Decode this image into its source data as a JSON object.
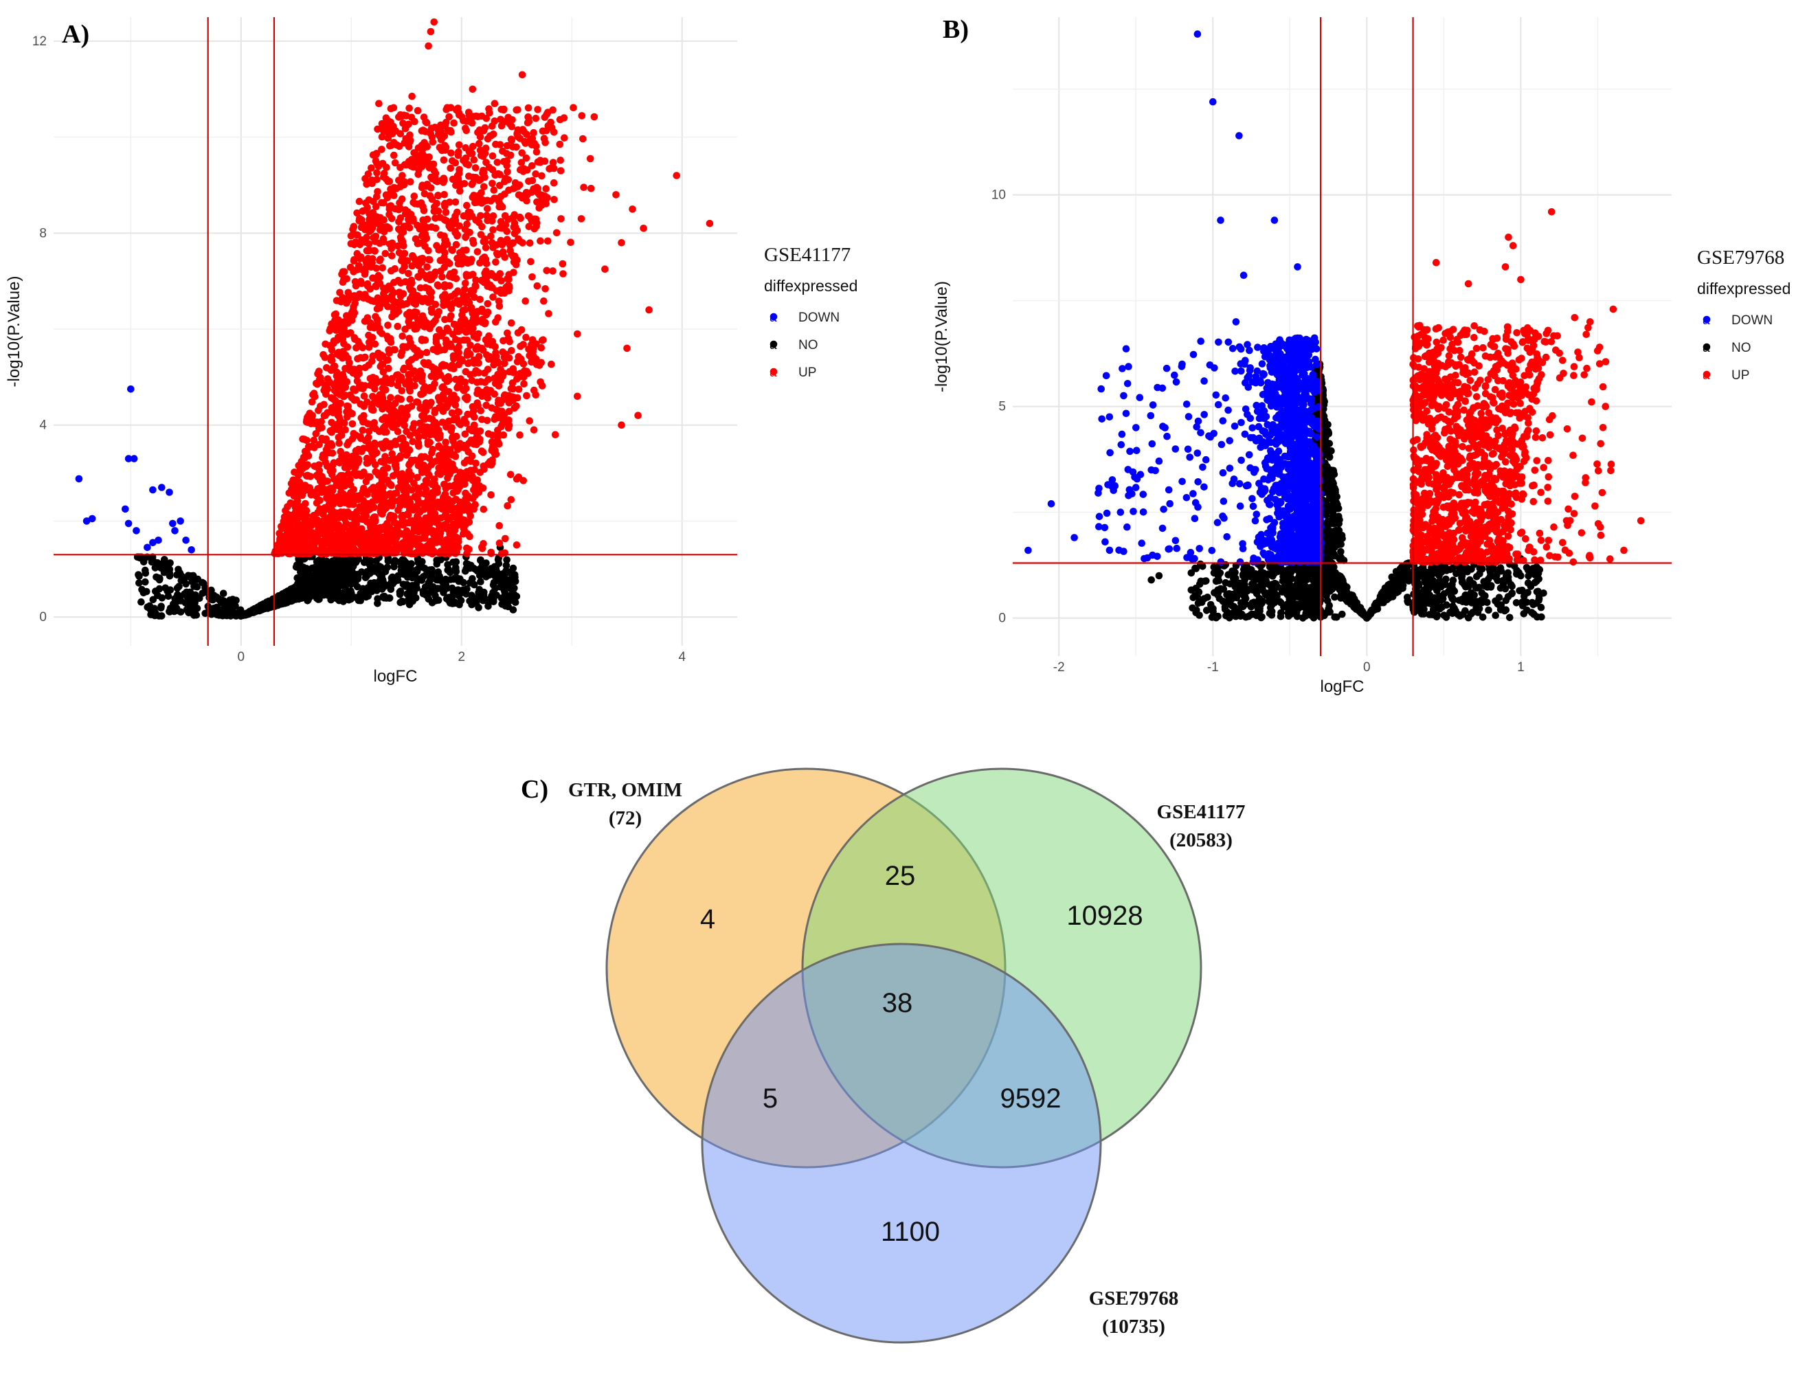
{
  "chart_data": [
    {
      "panel_label": "A)",
      "type": "scatter",
      "xlabel": "logFC",
      "ylabel": "-log10(P.Value)",
      "xlim": [
        -1.7,
        4.5
      ],
      "ylim": [
        -0.6,
        12.5
      ],
      "x_ticks": [
        "0",
        "2",
        "4"
      ],
      "y_ticks": [
        "0",
        "4",
        "8",
        "12"
      ],
      "thresholds": {
        "logFC": [
          -0.3,
          0.3
        ],
        "neg_log10_p": 1.3
      },
      "threshold_color": "#d40000",
      "legend": {
        "title": "GSE41177",
        "subtitle": "diffexpressed",
        "position": "right",
        "items": [
          {
            "key": "a",
            "label": "DOWN",
            "color": "#0000ff"
          },
          {
            "key": "a",
            "label": "NO",
            "color": "#000000"
          },
          {
            "key": "a",
            "label": "UP",
            "color": "#ff0000"
          }
        ]
      },
      "series": [
        {
          "name": "DOWN",
          "color": "#0000ff",
          "points": [
            [
              -1.47,
              2.88
            ],
            [
              -1.4,
              2.0
            ],
            [
              -1.35,
              2.05
            ],
            [
              -1.0,
              4.75
            ],
            [
              -1.02,
              3.3
            ],
            [
              -0.97,
              3.3
            ],
            [
              -1.05,
              2.25
            ],
            [
              -1.02,
              1.95
            ],
            [
              -0.95,
              1.8
            ],
            [
              -0.8,
              1.55
            ],
            [
              -0.75,
              1.6
            ],
            [
              -0.8,
              2.65
            ],
            [
              -0.72,
              2.7
            ],
            [
              -0.65,
              2.6
            ],
            [
              -0.6,
              1.8
            ],
            [
              -0.55,
              2.0
            ],
            [
              -0.5,
              1.6
            ],
            [
              -0.45,
              1.4
            ],
            [
              -0.85,
              1.45
            ],
            [
              -0.62,
              1.95
            ]
          ]
        },
        {
          "name": "NO",
          "color": "#000000",
          "gen": {
            "n": 1800,
            "seed": 11
          }
        },
        {
          "name": "UP",
          "color": "#ff0000",
          "gen": {
            "n": 3200,
            "seed": 7
          },
          "extra_points": [
            [
              1.75,
              12.4
            ],
            [
              1.72,
              12.2
            ],
            [
              1.7,
              11.9
            ],
            [
              2.55,
              11.3
            ],
            [
              2.1,
              11.0
            ],
            [
              1.55,
              10.85
            ],
            [
              2.3,
              10.7
            ],
            [
              1.25,
              10.7
            ],
            [
              2.6,
              10.3
            ],
            [
              2.9,
              9.3
            ],
            [
              3.95,
              9.2
            ],
            [
              3.4,
              8.8
            ],
            [
              3.55,
              8.5
            ],
            [
              4.25,
              8.2
            ],
            [
              3.65,
              8.1
            ],
            [
              3.45,
              7.8
            ],
            [
              3.3,
              7.25
            ],
            [
              3.7,
              6.4
            ],
            [
              3.05,
              5.9
            ],
            [
              3.5,
              5.6
            ],
            [
              3.05,
              4.6
            ],
            [
              3.6,
              4.2
            ],
            [
              3.45,
              4.0
            ],
            [
              2.85,
              3.8
            ],
            [
              2.5,
              1.5
            ]
          ]
        }
      ]
    },
    {
      "panel_label": "B)",
      "type": "scatter",
      "xlabel": "logFC",
      "ylabel": "-log10(P.Value)",
      "xlim": [
        -2.3,
        1.98
      ],
      "ylim": [
        -0.9,
        14.2
      ],
      "x_ticks": [
        "-2",
        "-1",
        "0",
        "1"
      ],
      "y_ticks": [
        "0",
        "5",
        "10"
      ],
      "thresholds": {
        "logFC": [
          -0.3,
          0.3
        ],
        "neg_log10_p": 1.3
      },
      "threshold_color": "#d40000",
      "legend": {
        "title": "GSE79768",
        "subtitle": "diffexpressed",
        "position": "right",
        "items": [
          {
            "key": "a",
            "label": "DOWN",
            "color": "#0000ff"
          },
          {
            "key": "a",
            "label": "NO",
            "color": "#000000"
          },
          {
            "key": "a",
            "label": "UP",
            "color": "#ff0000"
          }
        ]
      },
      "series": [
        {
          "name": "DOWN",
          "color": "#0000ff",
          "gen": {
            "n": 1500,
            "seed": 23
          },
          "extra_points": [
            [
              -1.1,
              13.8
            ],
            [
              -1.0,
              12.2
            ],
            [
              -0.83,
              11.4
            ],
            [
              -0.95,
              9.4
            ],
            [
              -0.6,
              9.4
            ],
            [
              -0.45,
              8.3
            ],
            [
              -0.8,
              8.1
            ],
            [
              -0.85,
              7.0
            ],
            [
              -1.2,
              6.0
            ],
            [
              -1.5,
              4.5
            ],
            [
              -1.3,
              5.9
            ],
            [
              -2.05,
              2.7
            ],
            [
              -1.9,
              1.9
            ],
            [
              -2.2,
              1.6
            ],
            [
              -1.7,
              1.8
            ],
            [
              -1.6,
              2.5
            ],
            [
              -1.4,
              3.5
            ],
            [
              -1.15,
              3.8
            ]
          ]
        },
        {
          "name": "NO",
          "color": "#000000",
          "gen": {
            "n": 1600,
            "seed": 31
          }
        },
        {
          "name": "UP",
          "color": "#ff0000",
          "gen": {
            "n": 1300,
            "seed": 41
          },
          "extra_points": [
            [
              1.2,
              9.6
            ],
            [
              0.92,
              9.0
            ],
            [
              0.95,
              8.8
            ],
            [
              0.9,
              8.3
            ],
            [
              0.45,
              8.4
            ],
            [
              0.66,
              7.9
            ],
            [
              1.0,
              8.0
            ],
            [
              1.6,
              7.3
            ],
            [
              1.35,
              7.1
            ],
            [
              1.45,
              7.0
            ],
            [
              1.55,
              5.0
            ],
            [
              1.42,
              3.2
            ],
            [
              1.78,
              2.3
            ],
            [
              1.67,
              1.6
            ],
            [
              1.05,
              1.6
            ]
          ]
        }
      ]
    },
    {
      "panel_label": "C)",
      "type": "venn",
      "sets": [
        {
          "name": "GTR, OMIM",
          "size_label": "(72)",
          "color": "#f5a623"
        },
        {
          "name": "GSE41177",
          "size_label": "(20583)",
          "color": "#7ed67a"
        },
        {
          "name": "GSE79768",
          "size_label": "(10735)",
          "color": "#6f94f5"
        }
      ],
      "regions": [
        {
          "sets": [
            "GTR, OMIM"
          ],
          "value": "4"
        },
        {
          "sets": [
            "GTR, OMIM",
            "GSE41177"
          ],
          "value": "25"
        },
        {
          "sets": [
            "GSE41177"
          ],
          "value": "10928"
        },
        {
          "sets": [
            "GTR, OMIM",
            "GSE41177",
            "GSE79768"
          ],
          "value": "38"
        },
        {
          "sets": [
            "GTR, OMIM",
            "GSE79768"
          ],
          "value": "5"
        },
        {
          "sets": [
            "GSE41177",
            "GSE79768"
          ],
          "value": "9592"
        },
        {
          "sets": [
            "GSE79768"
          ],
          "value": "1100"
        }
      ]
    }
  ]
}
